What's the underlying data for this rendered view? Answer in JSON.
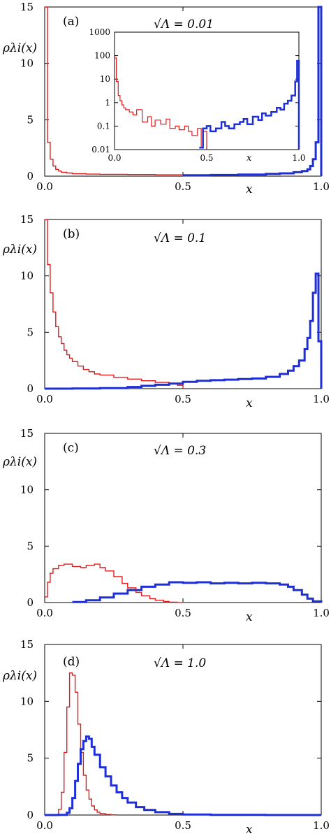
{
  "figure": {
    "colors": {
      "red": "#e41a1c",
      "blue": "#1f2fd6"
    }
  },
  "chart_data": [
    {
      "type": "line",
      "panel": "(a)",
      "title": "√Λ = 0.01",
      "xlabel": "x",
      "ylabel": "ρλi(x)",
      "xlim": [
        0,
        1
      ],
      "ylim": [
        0,
        15
      ],
      "xticks": [
        "0.0",
        "0.5",
        "1.0"
      ],
      "yticks": [
        "0",
        "5",
        "10",
        "15"
      ],
      "series": [
        {
          "color": "red",
          "width": 1.4,
          "x": [
            0,
            0.01,
            0.02,
            0.03,
            0.04,
            0.05,
            0.06,
            0.08,
            0.1,
            0.15,
            0.2,
            0.3,
            0.4,
            0.5
          ],
          "values": [
            15,
            3.0,
            1.5,
            0.9,
            0.6,
            0.45,
            0.35,
            0.28,
            0.22,
            0.18,
            0.16,
            0.14,
            0.12,
            0
          ]
        },
        {
          "color": "blue",
          "width": 3,
          "x": [
            0.5,
            0.6,
            0.7,
            0.8,
            0.85,
            0.9,
            0.93,
            0.95,
            0.96,
            0.97,
            0.98,
            0.99,
            1.0
          ],
          "values": [
            0.08,
            0.1,
            0.14,
            0.2,
            0.25,
            0.35,
            0.45,
            0.6,
            0.9,
            1.5,
            3.0,
            15,
            0
          ]
        }
      ],
      "inset": {
        "xlabel": "x",
        "yscale": "log",
        "xticks": [
          "0.0",
          "0.5",
          "x",
          "1.0"
        ],
        "yticks": [
          "1000",
          "100",
          "10",
          "1",
          "0.1",
          "0.01"
        ],
        "series": [
          {
            "color": "red",
            "width": 1.2,
            "x": [
              0,
              0.01,
              0.02,
              0.03,
              0.04,
              0.05,
              0.06,
              0.08,
              0.1,
              0.12,
              0.15,
              0.18,
              0.2,
              0.22,
              0.25,
              0.28,
              0.3,
              0.33,
              0.35,
              0.38,
              0.4,
              0.42,
              0.45,
              0.47,
              0.48,
              0.5
            ],
            "values": [
              80,
              8,
              2,
              1.2,
              0.8,
              0.6,
              0.5,
              0.4,
              0.3,
              0.5,
              0.15,
              0.25,
              0.1,
              0.18,
              0.12,
              0.2,
              0.08,
              0.1,
              0.07,
              0.1,
              0.06,
              0.04,
              0.08,
              0.012,
              0.06,
              0.012
            ]
          },
          {
            "color": "blue",
            "width": 2.5,
            "x": [
              0.46,
              0.48,
              0.5,
              0.52,
              0.55,
              0.58,
              0.6,
              0.62,
              0.65,
              0.68,
              0.7,
              0.72,
              0.75,
              0.78,
              0.8,
              0.82,
              0.85,
              0.88,
              0.9,
              0.92,
              0.94,
              0.96,
              0.98,
              0.99,
              1.0
            ],
            "values": [
              0.012,
              0.08,
              0.1,
              0.06,
              0.08,
              0.15,
              0.1,
              0.08,
              0.12,
              0.15,
              0.2,
              0.12,
              0.25,
              0.18,
              0.35,
              0.28,
              0.4,
              0.6,
              0.5,
              0.9,
              1.2,
              2,
              8,
              60,
              0.01
            ]
          }
        ]
      }
    },
    {
      "type": "line",
      "panel": "(b)",
      "title": "√Λ = 0.1",
      "xlabel": "x",
      "ylabel": "ρλi(x)",
      "xlim": [
        0,
        1
      ],
      "ylim": [
        0,
        15
      ],
      "xticks": [
        "0.0",
        "0.5",
        "1.0"
      ],
      "yticks": [
        "0",
        "5",
        "10",
        "15"
      ],
      "series": [
        {
          "color": "red",
          "width": 1.4,
          "x": [
            0,
            0.01,
            0.02,
            0.03,
            0.04,
            0.05,
            0.06,
            0.07,
            0.08,
            0.09,
            0.1,
            0.12,
            0.14,
            0.16,
            0.18,
            0.2,
            0.25,
            0.3,
            0.35,
            0.4,
            0.45,
            0.48,
            0.5
          ],
          "values": [
            15,
            11,
            8.5,
            6.8,
            5.5,
            4.6,
            4.0,
            3.4,
            3.0,
            2.7,
            2.4,
            2.0,
            1.7,
            1.5,
            1.3,
            1.2,
            1.0,
            0.85,
            0.7,
            0.55,
            0.45,
            0.3,
            0
          ]
        },
        {
          "color": "blue",
          "width": 3,
          "x": [
            0,
            0.1,
            0.2,
            0.3,
            0.35,
            0.4,
            0.45,
            0.5,
            0.55,
            0.6,
            0.65,
            0.7,
            0.75,
            0.8,
            0.85,
            0.88,
            0.9,
            0.92,
            0.94,
            0.95,
            0.96,
            0.97,
            0.98,
            0.99,
            1.0
          ],
          "values": [
            0,
            0.02,
            0.05,
            0.15,
            0.25,
            0.35,
            0.45,
            0.6,
            0.7,
            0.75,
            0.8,
            0.85,
            0.9,
            1.05,
            1.3,
            1.6,
            2.0,
            2.5,
            3.5,
            4.5,
            6.0,
            8.5,
            10.2,
            4.2,
            0
          ]
        }
      ]
    },
    {
      "type": "line",
      "panel": "(c)",
      "title": "√Λ = 0.3",
      "xlabel": "x",
      "ylabel": "ρλi(x)",
      "xlim": [
        0,
        1
      ],
      "ylim": [
        0,
        15
      ],
      "xticks": [
        "0.0",
        "0.5",
        "1.0"
      ],
      "yticks": [
        "0",
        "5",
        "10",
        "15"
      ],
      "series": [
        {
          "color": "red",
          "width": 1.4,
          "x": [
            0,
            0.01,
            0.02,
            0.03,
            0.05,
            0.07,
            0.1,
            0.13,
            0.15,
            0.18,
            0.2,
            0.22,
            0.25,
            0.28,
            0.3,
            0.33,
            0.35,
            0.38,
            0.4,
            0.43,
            0.45,
            0.48,
            0.5
          ],
          "values": [
            0.5,
            1.8,
            2.6,
            3.0,
            3.3,
            3.4,
            3.2,
            3.1,
            3.3,
            3.4,
            3.1,
            2.8,
            2.3,
            1.7,
            1.3,
            0.9,
            0.6,
            0.35,
            0.2,
            0.1,
            0.04,
            0.01,
            0
          ]
        },
        {
          "color": "blue",
          "width": 3,
          "x": [
            0.1,
            0.15,
            0.2,
            0.25,
            0.3,
            0.35,
            0.4,
            0.45,
            0.5,
            0.55,
            0.6,
            0.65,
            0.7,
            0.75,
            0.8,
            0.85,
            0.88,
            0.9,
            0.93,
            0.95,
            0.97,
            1.0
          ],
          "values": [
            0.05,
            0.2,
            0.45,
            0.8,
            1.1,
            1.4,
            1.6,
            1.8,
            1.75,
            1.8,
            1.7,
            1.75,
            1.7,
            1.75,
            1.7,
            1.6,
            1.4,
            1.1,
            0.7,
            0.35,
            0.1,
            0
          ]
        }
      ]
    },
    {
      "type": "line",
      "panel": "(d)",
      "title": "√Λ = 1.0",
      "xlabel": "x",
      "ylabel": "ρλi(x)",
      "xlim": [
        0,
        1
      ],
      "ylim": [
        0,
        15
      ],
      "xticks": [
        "0.0",
        "0.5",
        "1.0"
      ],
      "yticks": [
        "0",
        "5",
        "10",
        "15"
      ],
      "series": [
        {
          "color": "red",
          "width": 1.4,
          "x": [
            0,
            0.03,
            0.05,
            0.06,
            0.07,
            0.08,
            0.09,
            0.1,
            0.11,
            0.12,
            0.13,
            0.14,
            0.15,
            0.16,
            0.17,
            0.18,
            0.19,
            0.2,
            0.22,
            0.24,
            0.26
          ],
          "values": [
            0,
            0.05,
            0.5,
            2.0,
            5.5,
            9.5,
            12.5,
            12.3,
            10.8,
            8.0,
            5.5,
            3.5,
            2.2,
            1.4,
            0.8,
            0.45,
            0.25,
            0.12,
            0.05,
            0.02,
            0
          ]
        },
        {
          "color": "blue",
          "width": 3,
          "x": [
            0,
            0.05,
            0.08,
            0.09,
            0.1,
            0.11,
            0.12,
            0.13,
            0.14,
            0.15,
            0.16,
            0.17,
            0.18,
            0.2,
            0.22,
            0.24,
            0.26,
            0.28,
            0.3,
            0.33,
            0.36,
            0.4,
            0.45,
            0.5,
            0.6,
            0.8,
            1.0
          ],
          "values": [
            0,
            0.02,
            0.2,
            0.6,
            1.5,
            3.0,
            4.5,
            5.8,
            6.5,
            6.9,
            6.7,
            6.0,
            5.3,
            4.2,
            3.4,
            2.6,
            2.0,
            1.5,
            1.1,
            0.7,
            0.45,
            0.25,
            0.1,
            0.04,
            0.01,
            0,
            0
          ]
        }
      ]
    }
  ]
}
